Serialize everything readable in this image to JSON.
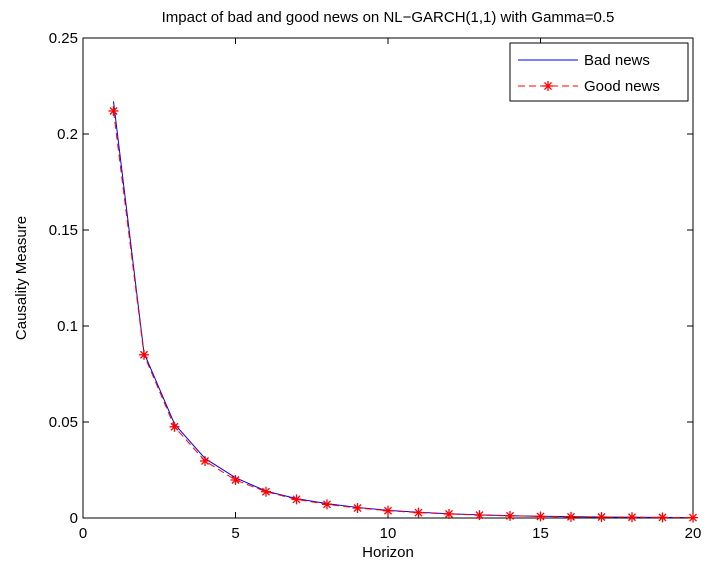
{
  "chart_data": {
    "type": "line",
    "title": "Impact of bad and good news on NL−GARCH(1,1) with Gamma=0.5",
    "xlabel": "Horizon",
    "ylabel": "Causality Measure",
    "xlim": [
      0,
      20
    ],
    "ylim": [
      0,
      0.25
    ],
    "xticks": [
      0,
      5,
      10,
      15,
      20
    ],
    "xtick_labels": [
      "0",
      "5",
      "10",
      "15",
      "20"
    ],
    "yticks": [
      0,
      0.05,
      0.1,
      0.15,
      0.2,
      0.25
    ],
    "ytick_labels": [
      "0",
      "0.05",
      "0.1",
      "0.15",
      "0.2",
      "0.25"
    ],
    "grid": false,
    "legend_position": "top-right",
    "x": [
      1,
      2,
      3,
      4,
      5,
      6,
      7,
      8,
      9,
      10,
      11,
      12,
      13,
      14,
      15,
      16,
      17,
      18,
      19,
      20
    ],
    "series": [
      {
        "name": "Bad news",
        "color": "#0000ff",
        "line_style": "solid",
        "marker": "none",
        "values": [
          0.217,
          0.086,
          0.049,
          0.031,
          0.021,
          0.014,
          0.0101,
          0.0075,
          0.0055,
          0.004,
          0.003,
          0.0022,
          0.0016,
          0.0012,
          0.0009,
          0.0007,
          0.0005,
          0.0004,
          0.0003,
          0.0002
        ]
      },
      {
        "name": "Good news",
        "color": "#ff0000",
        "line_style": "dashed",
        "marker": "asterisk",
        "values": [
          0.212,
          0.085,
          0.0475,
          0.0297,
          0.0198,
          0.0137,
          0.0097,
          0.0071,
          0.0052,
          0.0038,
          0.0028,
          0.0021,
          0.0015,
          0.0011,
          0.0008,
          0.0006,
          0.0005,
          0.0004,
          0.0003,
          0.0002
        ]
      }
    ]
  }
}
